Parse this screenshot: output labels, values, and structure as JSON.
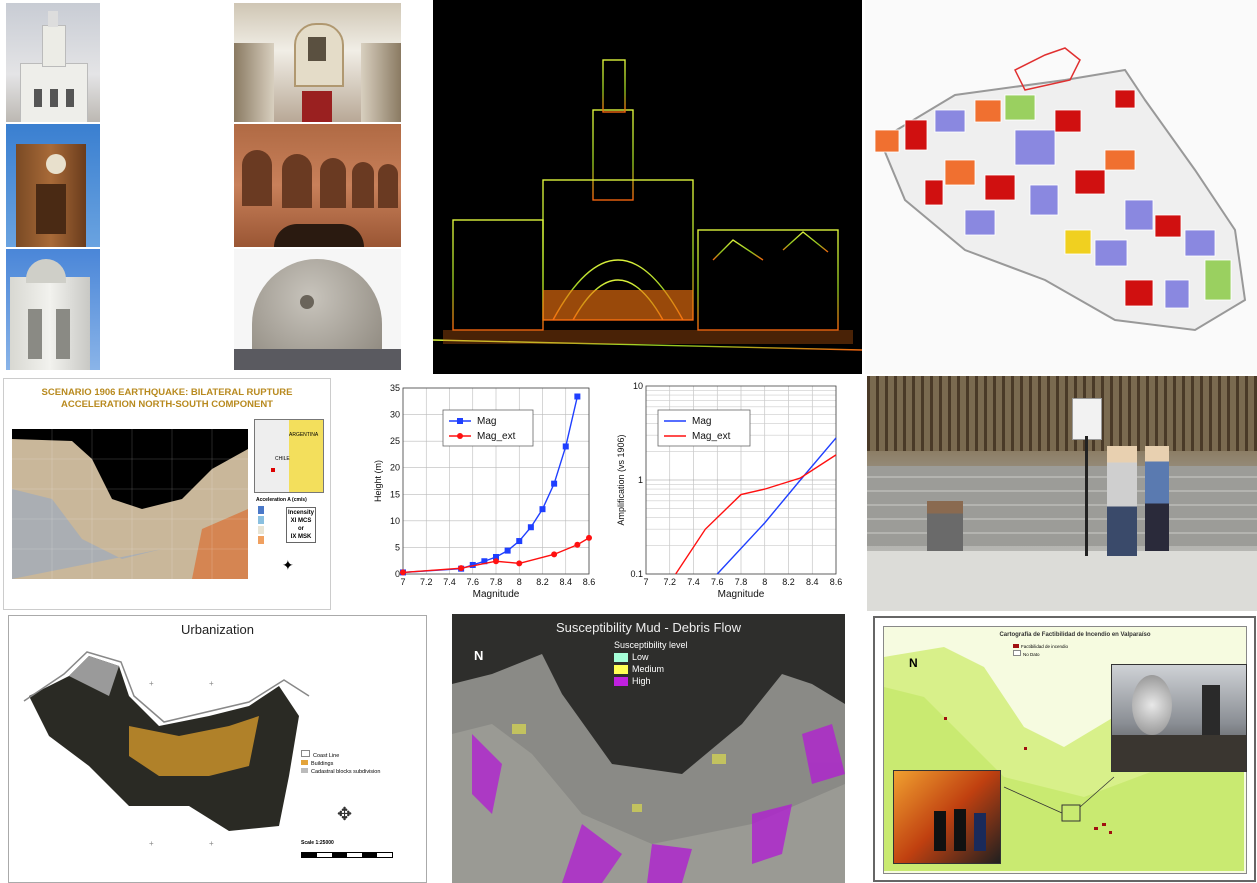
{
  "scenario_map": {
    "title_line1": "SCENARIO 1906 EARTHQUAKE: BILATERAL RUPTURE",
    "title_line2": "ACCELERATION NORTH-SOUTH COMPONENT",
    "inset_label_1": "ARGENTINA",
    "inset_label_2": "CHILE",
    "legend_title": "Acceleration A (cm/s)",
    "intensity_1": "Incensity",
    "intensity_2": "XI MCS",
    "intensity_3": "or",
    "intensity_4": "IX MSK",
    "colors": {
      "title": "#b88a1f",
      "bg": "#d8c9a6"
    }
  },
  "chart_left": {
    "chart_data": {
      "type": "line",
      "xlabel": "Magnitude",
      "ylabel": "Height (m)",
      "xlim": [
        7,
        8.6
      ],
      "ylim": [
        0,
        35
      ],
      "xticks": [
        "7",
        "7.2",
        "7.4",
        "7.6",
        "7.8",
        "8",
        "8.2",
        "8.4",
        "8.6"
      ],
      "yticks": [
        "0",
        "5",
        "10",
        "15",
        "20",
        "25",
        "30",
        "35"
      ],
      "legend": "top-left",
      "series": [
        {
          "name": "Mag",
          "color": "#1f3fff",
          "marker": "square",
          "x": [
            7.0,
            7.5,
            7.6,
            7.7,
            7.8,
            7.9,
            8.0,
            8.1,
            8.2,
            8.3,
            8.4,
            8.5
          ],
          "y": [
            0.3,
            1.0,
            1.7,
            2.4,
            3.2,
            4.4,
            6.2,
            8.8,
            12.2,
            17.0,
            24.0,
            33.4
          ]
        },
        {
          "name": "Mag_ext",
          "color": "#ff1010",
          "marker": "diamond",
          "x": [
            7.0,
            7.5,
            7.8,
            8.0,
            8.3,
            8.5,
            8.6
          ],
          "y": [
            0.3,
            1.1,
            2.4,
            2.0,
            3.7,
            5.5,
            6.8
          ]
        }
      ]
    }
  },
  "chart_right": {
    "chart_data": {
      "type": "line",
      "xlabel": "Magnitude",
      "ylabel": "Amplification (vs 1906)",
      "xlim": [
        7,
        8.6
      ],
      "ylim": [
        0.1,
        10
      ],
      "yscale": "log",
      "xticks": [
        "7",
        "7.2",
        "7.4",
        "7.6",
        "7.8",
        "8",
        "8.2",
        "8.4",
        "8.6"
      ],
      "yticks": [
        "0.1",
        "1",
        "10"
      ],
      "legend": "top-left",
      "series": [
        {
          "name": "Mag",
          "color": "#1f3fff",
          "x": [
            7.6,
            8.0,
            8.3,
            8.6
          ],
          "y": [
            0.1,
            0.35,
            1.0,
            2.8
          ]
        },
        {
          "name": "Mag_ext",
          "color": "#ff1010",
          "x": [
            7.25,
            7.5,
            7.8,
            8.0,
            8.3,
            8.6
          ],
          "y": [
            0.1,
            0.3,
            0.7,
            0.8,
            1.05,
            1.85
          ]
        }
      ]
    }
  },
  "urbanization": {
    "title": "Urbanization",
    "legend": [
      "Coast Line",
      "Buildings",
      "Cadastral blocks subdivision"
    ],
    "scale": "Scale 1:25000",
    "colors": {
      "buildings": "#e3a33a",
      "blocks": "#bbbbbb"
    }
  },
  "susceptibility": {
    "title": "Susceptibility Mud - Debris Flow",
    "legend_title": "Susceptibility level",
    "levels": [
      {
        "label": "Low",
        "color": "#a6ffd8"
      },
      {
        "label": "Medium",
        "color": "#ffff55"
      },
      {
        "label": "High",
        "color": "#c020e0"
      }
    ],
    "north": "N"
  },
  "fire_map": {
    "title": "Cartografía de Factibilidad de Incendio en Valparaíso",
    "legend": [
      "Factibilidad de incendio",
      "No Dato"
    ],
    "north": "N"
  }
}
